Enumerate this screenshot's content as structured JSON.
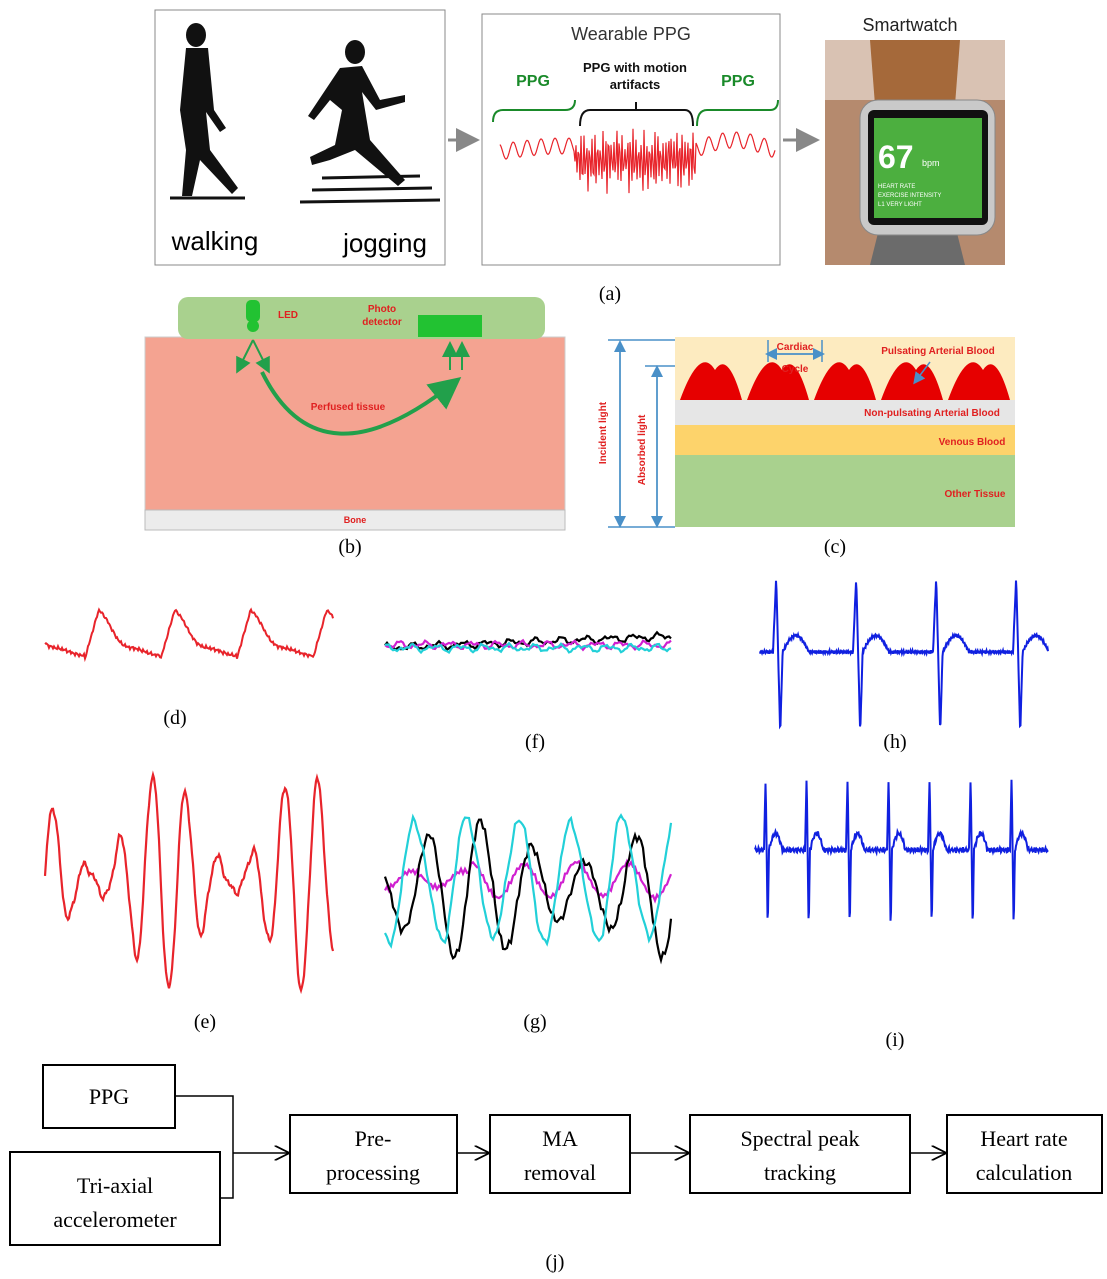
{
  "panel_a": {
    "activities": [
      "walking",
      "jogging"
    ],
    "ppg_title": "Wearable PPG",
    "segments": [
      [
        "PPG"
      ],
      [
        "PPG with motion",
        "artifacts"
      ],
      [
        "PPG"
      ]
    ],
    "watch_title": "Smartwatch",
    "watch_screen": {
      "heart_rate": "67",
      "unit": "bpm",
      "lines": [
        "HEART RATE",
        "EXERCISE INTENSITY",
        "L1 VERY LIGHT"
      ]
    },
    "label": "(a)"
  },
  "panel_b": {
    "led": "LED",
    "detector": [
      "Photo",
      "detector"
    ],
    "tissue": "Perfused tissue",
    "bone": "Bone",
    "label": "(b)"
  },
  "panel_c": {
    "incident": "Incident light",
    "absorbed": "Absorbed light",
    "cycle": [
      "Cardiac",
      "Cycle"
    ],
    "layers": [
      "Pulsating Arterial Blood",
      "Non-pulsating Arterial Blood",
      "Venous Blood",
      "Other Tissue"
    ],
    "label": "(c)"
  },
  "waveform_labels": [
    "(d)",
    "(e)",
    "(f)",
    "(g)",
    "(h)",
    "(i)"
  ],
  "panel_j": {
    "inputs": [
      [
        "PPG"
      ],
      [
        "Tri-axial",
        "accelerometer"
      ]
    ],
    "steps": [
      [
        "Pre-",
        "processing"
      ],
      [
        "MA",
        "removal"
      ],
      [
        "Spectral peak",
        "tracking"
      ],
      [
        "Heart rate",
        "calculation"
      ]
    ],
    "label": "(j)"
  }
}
